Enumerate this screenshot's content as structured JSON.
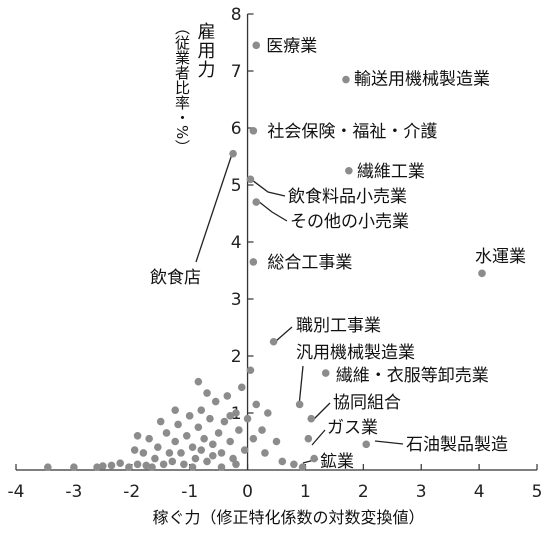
{
  "chart_data": {
    "type": "scatter",
    "title": "",
    "xlabel": "稼ぐ力（修正特化係数の対数変換値）",
    "ylabel_main": "雇用力",
    "ylabel_sub": "（従業者比率・%）",
    "xlim": [
      -4,
      5
    ],
    "ylim": [
      0,
      8
    ],
    "x_ticks": [
      -4,
      -3,
      -2,
      -1,
      0,
      1,
      2,
      3,
      4,
      5
    ],
    "y_ticks": [
      1,
      2,
      3,
      4,
      5,
      6,
      7,
      8
    ],
    "grid": false,
    "legend": "none",
    "point_color": "#8c8c8c",
    "labeled_points": [
      {
        "name": "医療業",
        "x": 0.15,
        "y": 7.45
      },
      {
        "name": "輸送用機械製造業",
        "x": 1.7,
        "y": 6.85
      },
      {
        "name": "社会保険・福祉・介護",
        "x": 0.1,
        "y": 5.95
      },
      {
        "name": "繊維工業",
        "x": 1.75,
        "y": 5.25
      },
      {
        "name": "飲食料品小売業",
        "x": 0.05,
        "y": 5.1
      },
      {
        "name": "その他の小売業",
        "x": 0.15,
        "y": 4.7
      },
      {
        "name": "総合工事業",
        "x": 0.1,
        "y": 3.65
      },
      {
        "name": "水運業",
        "x": 4.05,
        "y": 3.45
      },
      {
        "name": "飲食店",
        "x": -0.25,
        "y": 5.55
      },
      {
        "name": "職別工事業",
        "x": 0.45,
        "y": 2.25
      },
      {
        "name": "汎用機械製造業",
        "x": 0.9,
        "y": 1.15
      },
      {
        "name": "繊維・衣服等卸売業",
        "x": 1.35,
        "y": 1.7
      },
      {
        "name": "協同組合",
        "x": 1.1,
        "y": 0.9
      },
      {
        "name": "ガス業",
        "x": 1.05,
        "y": 0.55
      },
      {
        "name": "石油製品製造",
        "x": 2.05,
        "y": 0.45
      },
      {
        "name": "鉱業",
        "x": 1.15,
        "y": 0.2
      }
    ],
    "other_points": [
      {
        "x": -3.45,
        "y": 0.05
      },
      {
        "x": -3.0,
        "y": 0.05
      },
      {
        "x": -2.6,
        "y": 0.05
      },
      {
        "x": -2.5,
        "y": 0.07
      },
      {
        "x": -2.35,
        "y": 0.08
      },
      {
        "x": -2.2,
        "y": 0.12
      },
      {
        "x": -2.05,
        "y": 0.05
      },
      {
        "x": -1.95,
        "y": 0.35
      },
      {
        "x": -1.9,
        "y": 0.1
      },
      {
        "x": -1.8,
        "y": 0.3
      },
      {
        "x": -1.75,
        "y": 0.08
      },
      {
        "x": -1.7,
        "y": 0.55
      },
      {
        "x": -1.6,
        "y": 0.2
      },
      {
        "x": -1.55,
        "y": 0.4
      },
      {
        "x": -1.45,
        "y": 0.1
      },
      {
        "x": -1.4,
        "y": 0.65
      },
      {
        "x": -1.35,
        "y": 0.3
      },
      {
        "x": -1.3,
        "y": 0.15
      },
      {
        "x": -1.25,
        "y": 0.5
      },
      {
        "x": -1.2,
        "y": 0.8
      },
      {
        "x": -1.15,
        "y": 0.3
      },
      {
        "x": -1.1,
        "y": 0.1
      },
      {
        "x": -1.05,
        "y": 0.6
      },
      {
        "x": -1.0,
        "y": 0.95
      },
      {
        "x": -0.95,
        "y": 0.4
      },
      {
        "x": -0.9,
        "y": 0.2
      },
      {
        "x": -0.85,
        "y": 0.75
      },
      {
        "x": -0.8,
        "y": 0.35
      },
      {
        "x": -0.8,
        "y": 1.05
      },
      {
        "x": -0.75,
        "y": 0.55
      },
      {
        "x": -0.7,
        "y": 0.15
      },
      {
        "x": -0.65,
        "y": 0.9
      },
      {
        "x": -0.6,
        "y": 0.45
      },
      {
        "x": -0.6,
        "y": 0.25
      },
      {
        "x": -0.55,
        "y": 1.2
      },
      {
        "x": -0.5,
        "y": 0.65
      },
      {
        "x": -0.45,
        "y": 0.3
      },
      {
        "x": -0.4,
        "y": 0.85
      },
      {
        "x": -0.35,
        "y": 1.3
      },
      {
        "x": -0.3,
        "y": 0.5
      },
      {
        "x": -0.25,
        "y": 0.2
      },
      {
        "x": -0.2,
        "y": 1.0
      },
      {
        "x": -0.15,
        "y": 0.7
      },
      {
        "x": -0.1,
        "y": 1.45
      },
      {
        "x": -0.05,
        "y": 0.35
      },
      {
        "x": 0.0,
        "y": 0.9
      },
      {
        "x": -0.7,
        "y": 1.35
      },
      {
        "x": -0.85,
        "y": 1.55
      },
      {
        "x": -0.95,
        "y": 0.05
      },
      {
        "x": -0.45,
        "y": 0.05
      },
      {
        "x": -0.2,
        "y": 0.1
      },
      {
        "x": 0.1,
        "y": 0.55
      },
      {
        "x": 0.15,
        "y": 1.15
      },
      {
        "x": 0.25,
        "y": 0.7
      },
      {
        "x": 0.3,
        "y": 0.3
      },
      {
        "x": 0.35,
        "y": 1.0
      },
      {
        "x": 0.5,
        "y": 0.5
      },
      {
        "x": 0.6,
        "y": 0.15
      },
      {
        "x": 0.8,
        "y": 0.1
      },
      {
        "x": 0.95,
        "y": 0.05
      },
      {
        "x": -1.5,
        "y": 0.85
      },
      {
        "x": -1.9,
        "y": 0.6
      },
      {
        "x": -1.65,
        "y": 0.05
      },
      {
        "x": -0.3,
        "y": 0.95
      },
      {
        "x": 0.05,
        "y": 1.75
      },
      {
        "x": -1.25,
        "y": 1.05
      }
    ]
  }
}
